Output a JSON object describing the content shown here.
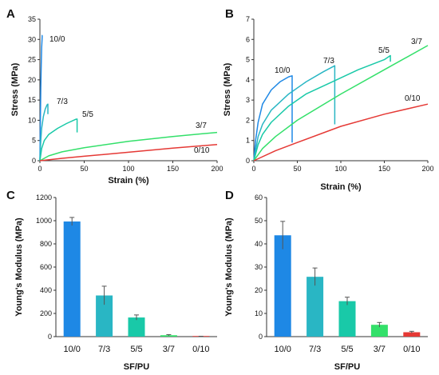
{
  "chart_data": [
    {
      "panel": "A",
      "type": "line",
      "xlabel": "Strain (%)",
      "ylabel": "Stress (MPa)",
      "xlim": [
        0,
        200
      ],
      "ylim": [
        0,
        35
      ],
      "xticks": [
        0,
        50,
        100,
        150,
        200
      ],
      "yticks": [
        0,
        5,
        10,
        15,
        20,
        25,
        30,
        35
      ],
      "grid": false,
      "series": [
        {
          "name": "10/0",
          "color": "#1e88e5",
          "x": [
            0,
            0.5,
            1,
            1.5,
            2,
            2.4,
            2.6,
            2.8
          ],
          "y": [
            0,
            10,
            18,
            24,
            28,
            30,
            31,
            31
          ]
        },
        {
          "name": "7/3",
          "color": "#29b6c4",
          "x": [
            0,
            1,
            2,
            4,
            6,
            8,
            9,
            9
          ],
          "y": [
            0,
            5,
            8,
            11,
            12.8,
            13.8,
            14,
            11.5
          ]
        },
        {
          "name": "5/5",
          "color": "#19c9a8",
          "x": [
            0,
            2,
            5,
            10,
            20,
            30,
            40,
            42,
            42
          ],
          "y": [
            0,
            3,
            5,
            6.5,
            8,
            9.2,
            10.2,
            10.3,
            7
          ]
        },
        {
          "name": "3/7",
          "color": "#33e06a",
          "x": [
            0,
            10,
            25,
            50,
            100,
            150,
            200
          ],
          "y": [
            0,
            1.2,
            2.2,
            3.2,
            4.8,
            6,
            7
          ]
        },
        {
          "name": "0/10",
          "color": "#e53935",
          "x": [
            0,
            25,
            50,
            100,
            150,
            200
          ],
          "y": [
            0,
            0.6,
            1.1,
            2.1,
            3.1,
            4
          ]
        }
      ],
      "annotations": [
        "10/0",
        "7/3",
        "5/5",
        "3/7",
        "0/10"
      ]
    },
    {
      "panel": "B",
      "type": "line",
      "xlabel": "Strain (%)",
      "ylabel": "Stress (MPa)",
      "xlim": [
        0,
        200
      ],
      "ylim": [
        0,
        7
      ],
      "xticks": [
        0,
        50,
        100,
        150,
        200
      ],
      "yticks": [
        0,
        1,
        2,
        3,
        4,
        5,
        6,
        7
      ],
      "grid": false,
      "series": [
        {
          "name": "10/0",
          "color": "#1e88e5",
          "x": [
            0,
            2,
            5,
            10,
            20,
            30,
            40,
            44,
            44
          ],
          "y": [
            0,
            1,
            1.9,
            2.8,
            3.5,
            3.9,
            4.15,
            4.2,
            0.9
          ]
        },
        {
          "name": "7/3",
          "color": "#29b6c4",
          "x": [
            0,
            5,
            10,
            20,
            40,
            60,
            80,
            93,
            93
          ],
          "y": [
            0,
            1.2,
            1.8,
            2.5,
            3.3,
            3.9,
            4.4,
            4.7,
            1.8
          ]
        },
        {
          "name": "5/5",
          "color": "#19c9a8",
          "x": [
            0,
            5,
            10,
            20,
            40,
            60,
            90,
            120,
            150,
            157,
            157
          ],
          "y": [
            0,
            0.8,
            1.3,
            1.9,
            2.7,
            3.3,
            3.9,
            4.5,
            5,
            5.2,
            4.9
          ]
        },
        {
          "name": "3/7",
          "color": "#33e06a",
          "x": [
            0,
            10,
            25,
            50,
            100,
            150,
            200
          ],
          "y": [
            0,
            0.6,
            1.2,
            2,
            3.3,
            4.5,
            5.7
          ]
        },
        {
          "name": "0/10",
          "color": "#e53935",
          "x": [
            0,
            25,
            50,
            100,
            150,
            200
          ],
          "y": [
            0,
            0.5,
            0.9,
            1.7,
            2.3,
            2.8
          ]
        }
      ],
      "annotations": [
        "10/0",
        "7/3",
        "5/5",
        "3/7",
        "0/10"
      ]
    },
    {
      "panel": "C",
      "type": "bar",
      "xlabel": "SF/PU",
      "ylabel": "Young's Modulus (MPa)",
      "ylim": [
        0,
        1200
      ],
      "yticks": [
        0,
        200,
        400,
        600,
        800,
        1000,
        1200
      ],
      "categories": [
        "10/0",
        "7/3",
        "5/5",
        "3/7",
        "0/10"
      ],
      "values": [
        993,
        355,
        165,
        12,
        2
      ],
      "errors": [
        35,
        80,
        22,
        5,
        1
      ],
      "colors": [
        "#1e88e5",
        "#29b6c4",
        "#19c9a8",
        "#33e06a",
        "#e53935"
      ],
      "grid": false
    },
    {
      "panel": "D",
      "type": "bar",
      "xlabel": "SF/PU",
      "ylabel": "Young's Modulus (MPa)",
      "ylim": [
        0,
        60
      ],
      "yticks": [
        0,
        10,
        20,
        30,
        40,
        50,
        60
      ],
      "categories": [
        "10/0",
        "7/3",
        "5/5",
        "3/7",
        "0/10"
      ],
      "values": [
        43.7,
        25.8,
        15.3,
        5.1,
        1.9
      ],
      "errors": [
        6,
        3.8,
        1.7,
        1,
        0.4
      ],
      "colors": [
        "#1e88e5",
        "#29b6c4",
        "#19c9a8",
        "#33e06a",
        "#e53935"
      ],
      "grid": false
    }
  ]
}
